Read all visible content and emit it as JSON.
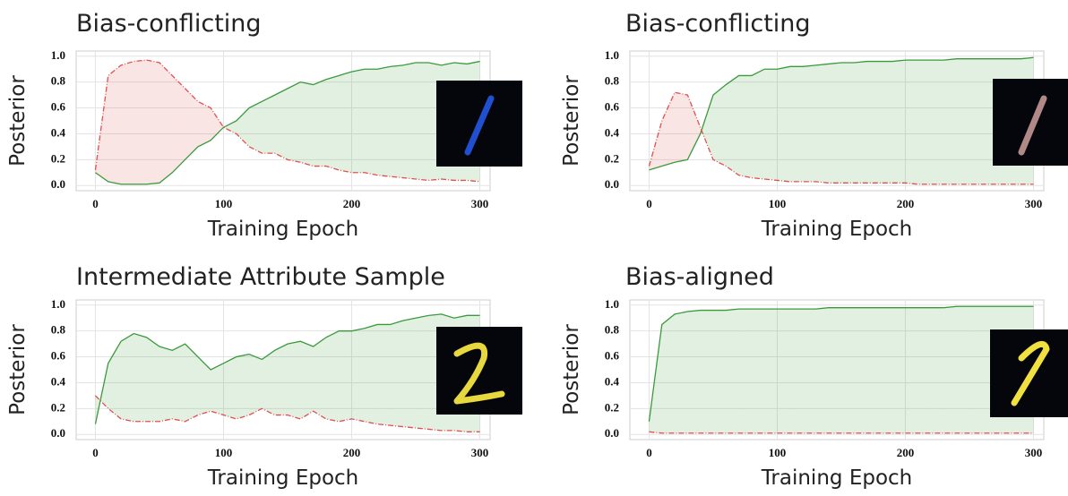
{
  "chart_data": [
    {
      "type": "line",
      "title": "Bias-conflicting",
      "x_label": "Training Epoch",
      "y_label": "Posterior",
      "x": [
        0,
        10,
        20,
        30,
        40,
        50,
        60,
        70,
        80,
        90,
        100,
        110,
        120,
        130,
        140,
        150,
        160,
        170,
        180,
        190,
        200,
        210,
        220,
        230,
        240,
        250,
        260,
        270,
        280,
        290,
        300
      ],
      "series": [
        {
          "color": "#3a9a3a",
          "values": [
            0.1,
            0.03,
            0.01,
            0.01,
            0.01,
            0.02,
            0.1,
            0.2,
            0.3,
            0.35,
            0.45,
            0.5,
            0.6,
            0.65,
            0.7,
            0.75,
            0.8,
            0.78,
            0.82,
            0.85,
            0.88,
            0.9,
            0.9,
            0.92,
            0.93,
            0.95,
            0.95,
            0.93,
            0.95,
            0.94,
            0.96
          ]
        },
        {
          "color": "#e05050",
          "values": [
            0.12,
            0.85,
            0.93,
            0.96,
            0.97,
            0.95,
            0.85,
            0.75,
            0.65,
            0.6,
            0.45,
            0.4,
            0.3,
            0.25,
            0.25,
            0.2,
            0.18,
            0.15,
            0.15,
            0.12,
            0.1,
            0.1,
            0.08,
            0.07,
            0.06,
            0.05,
            0.04,
            0.05,
            0.04,
            0.04,
            0.03
          ]
        }
      ],
      "xlim": [
        -15,
        308
      ],
      "ylim": [
        -0.04,
        1.04
      ],
      "xticks": [
        0,
        100,
        200,
        300
      ],
      "yticks": [
        {
          "value": 0,
          "label": "0.0"
        },
        0.2,
        0.4,
        0.6,
        0.8,
        {
          "value": 1,
          "label": "1.0"
        }
      ],
      "grid": true
    },
    {
      "type": "line",
      "title": "Bias-conflicting",
      "x_label": "Training Epoch",
      "y_label": "Posterior",
      "x": [
        0,
        10,
        20,
        30,
        40,
        50,
        60,
        70,
        80,
        90,
        100,
        110,
        120,
        130,
        140,
        150,
        160,
        170,
        180,
        190,
        200,
        210,
        220,
        230,
        240,
        250,
        260,
        270,
        280,
        290,
        300
      ],
      "series": [
        {
          "color": "#3a9a3a",
          "values": [
            0.12,
            0.15,
            0.18,
            0.2,
            0.4,
            0.7,
            0.78,
            0.85,
            0.85,
            0.9,
            0.9,
            0.92,
            0.92,
            0.93,
            0.94,
            0.95,
            0.95,
            0.96,
            0.96,
            0.96,
            0.97,
            0.97,
            0.97,
            0.97,
            0.98,
            0.98,
            0.98,
            0.98,
            0.98,
            0.98,
            0.99
          ]
        },
        {
          "color": "#e05050",
          "values": [
            0.15,
            0.5,
            0.72,
            0.7,
            0.45,
            0.2,
            0.15,
            0.08,
            0.06,
            0.05,
            0.04,
            0.03,
            0.03,
            0.03,
            0.02,
            0.02,
            0.02,
            0.02,
            0.02,
            0.02,
            0.02,
            0.01,
            0.01,
            0.01,
            0.01,
            0.01,
            0.01,
            0.01,
            0.01,
            0.01,
            0.01
          ]
        }
      ],
      "xlim": [
        -15,
        308
      ],
      "ylim": [
        -0.04,
        1.04
      ],
      "xticks": [
        0,
        100,
        200,
        300
      ],
      "yticks": [
        {
          "value": 0,
          "label": "0.0"
        },
        0.2,
        0.4,
        0.6,
        0.8,
        {
          "value": 1,
          "label": "1.0"
        }
      ],
      "grid": true
    },
    {
      "type": "line",
      "title": "Intermediate Attribute Sample",
      "x_label": "Training Epoch",
      "y_label": "Posterior",
      "x": [
        0,
        10,
        20,
        30,
        40,
        50,
        60,
        70,
        80,
        90,
        100,
        110,
        120,
        130,
        140,
        150,
        160,
        170,
        180,
        190,
        200,
        210,
        220,
        230,
        240,
        250,
        260,
        270,
        280,
        290,
        300
      ],
      "series": [
        {
          "color": "#3a9a3a",
          "values": [
            0.08,
            0.55,
            0.72,
            0.78,
            0.75,
            0.68,
            0.65,
            0.7,
            0.6,
            0.5,
            0.55,
            0.6,
            0.62,
            0.58,
            0.65,
            0.7,
            0.72,
            0.68,
            0.75,
            0.8,
            0.8,
            0.82,
            0.85,
            0.85,
            0.88,
            0.9,
            0.92,
            0.93,
            0.9,
            0.92,
            0.92
          ]
        },
        {
          "color": "#e05050",
          "values": [
            0.3,
            0.2,
            0.12,
            0.1,
            0.1,
            0.1,
            0.12,
            0.1,
            0.15,
            0.18,
            0.15,
            0.12,
            0.15,
            0.2,
            0.15,
            0.15,
            0.12,
            0.18,
            0.12,
            0.1,
            0.12,
            0.1,
            0.08,
            0.07,
            0.06,
            0.05,
            0.04,
            0.03,
            0.03,
            0.02,
            0.02
          ]
        }
      ],
      "xlim": [
        -15,
        308
      ],
      "ylim": [
        -0.04,
        1.04
      ],
      "xticks": [
        0,
        100,
        200,
        300
      ],
      "yticks": [
        {
          "value": 0,
          "label": "0.0"
        },
        0.2,
        0.4,
        0.6,
        0.8,
        {
          "value": 1,
          "label": "1.0"
        }
      ],
      "grid": true
    },
    {
      "type": "line",
      "title": "Bias-aligned",
      "x_label": "Training Epoch",
      "y_label": "Posterior",
      "x": [
        0,
        10,
        20,
        30,
        40,
        50,
        60,
        70,
        80,
        90,
        100,
        110,
        120,
        130,
        140,
        150,
        160,
        170,
        180,
        190,
        200,
        210,
        220,
        230,
        240,
        250,
        260,
        270,
        280,
        290,
        300
      ],
      "series": [
        {
          "color": "#3a9a3a",
          "values": [
            0.1,
            0.85,
            0.93,
            0.95,
            0.96,
            0.96,
            0.96,
            0.97,
            0.97,
            0.97,
            0.97,
            0.97,
            0.97,
            0.97,
            0.98,
            0.98,
            0.98,
            0.98,
            0.98,
            0.98,
            0.98,
            0.98,
            0.98,
            0.98,
            0.99,
            0.99,
            0.99,
            0.99,
            0.99,
            0.99,
            0.99
          ]
        },
        {
          "color": "#e05050",
          "values": [
            0.02,
            0.01,
            0.01,
            0.01,
            0.01,
            0.01,
            0.01,
            0.01,
            0.01,
            0.01,
            0.01,
            0.01,
            0.01,
            0.01,
            0.01,
            0.01,
            0.01,
            0.01,
            0.01,
            0.01,
            0.01,
            0.01,
            0.01,
            0.01,
            0.01,
            0.01,
            0.01,
            0.01,
            0.01,
            0.01,
            0.01
          ]
        }
      ],
      "xlim": [
        -15,
        308
      ],
      "ylim": [
        -0.04,
        1.04
      ],
      "xticks": [
        0,
        100,
        200,
        300
      ],
      "yticks": [
        {
          "value": 0,
          "label": "0.0"
        },
        0.2,
        0.4,
        0.6,
        0.8,
        {
          "value": 1,
          "label": "1.0"
        }
      ],
      "grid": true
    }
  ]
}
